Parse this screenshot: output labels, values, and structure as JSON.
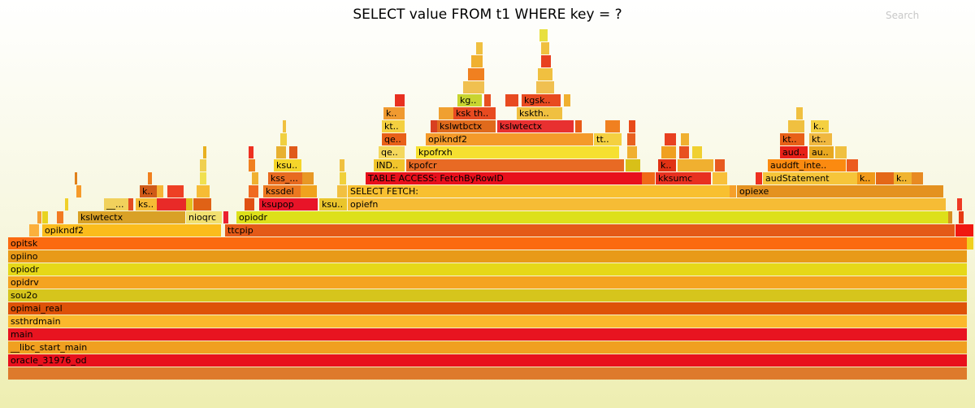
{
  "chart_data": {
    "type": "flamegraph",
    "title": "SELECT value FROM t1 WHERE key = ?",
    "search_label": "Search",
    "frames": [
      {
        "label": "",
        "depth": 0,
        "start": 0,
        "width": 1180,
        "color": "#de7a2c"
      },
      {
        "label": "oracle_31976_od",
        "depth": 1,
        "start": 0,
        "width": 1180,
        "color": "#e8101c"
      },
      {
        "label": "__libc_start_main",
        "depth": 2,
        "start": 0,
        "width": 1180,
        "color": "#f0a020"
      },
      {
        "label": "main",
        "depth": 3,
        "start": 0,
        "width": 1180,
        "color": "#e81420"
      },
      {
        "label": "ssthrdmain",
        "depth": 4,
        "start": 0,
        "width": 1180,
        "color": "#fbb82c"
      },
      {
        "label": "opimai_real",
        "depth": 5,
        "start": 0,
        "width": 1180,
        "color": "#de5208"
      },
      {
        "label": "sou2o",
        "depth": 6,
        "start": 0,
        "width": 1180,
        "color": "#d6c51c"
      },
      {
        "label": "opidrv",
        "depth": 7,
        "start": 0,
        "width": 1180,
        "color": "#f4a420"
      },
      {
        "label": "opiodr",
        "depth": 8,
        "start": 0,
        "width": 1180,
        "color": "#e6d818"
      },
      {
        "label": "opiino",
        "depth": 9,
        "start": 0,
        "width": 1180,
        "color": "#e89a18"
      },
      {
        "label": "opitsk",
        "depth": 10,
        "start": 0,
        "width": 1180,
        "color": "#fb6a10"
      },
      {
        "label": "",
        "depth": 10,
        "start": 1180,
        "width": 8,
        "color": "#f0d020"
      },
      {
        "label": "",
        "depth": 11,
        "start": 26,
        "width": 12,
        "color": "#fbb03c"
      },
      {
        "label": "opikndf2",
        "depth": 11,
        "start": 42,
        "width": 220,
        "color": "#fbbc1c"
      },
      {
        "label": "ttcpip",
        "depth": 11,
        "start": 267,
        "width": 898,
        "color": "#e45a18"
      },
      {
        "label": "",
        "depth": 11,
        "start": 1166,
        "width": 22,
        "color": "#f01810"
      },
      {
        "label": "",
        "depth": 12,
        "start": 36,
        "width": 5,
        "color": "#f5a033"
      },
      {
        "label": "",
        "depth": 12,
        "start": 42,
        "width": 7,
        "color": "#e8d320"
      },
      {
        "label": "",
        "depth": 12,
        "start": 60,
        "width": 8,
        "color": "#f27a22"
      },
      {
        "label": "kslwtectx",
        "depth": 12,
        "start": 86,
        "width": 132,
        "color": "#d9a126"
      },
      {
        "label": "nioqrc",
        "depth": 12,
        "start": 219,
        "width": 44,
        "color": "#f1e070"
      },
      {
        "label": "",
        "depth": 12,
        "start": 265,
        "width": 6,
        "color": "#eb2030"
      },
      {
        "label": "opiodr",
        "depth": 12,
        "start": 281,
        "width": 876,
        "color": "#dde01a"
      },
      {
        "label": "",
        "depth": 12,
        "start": 1157,
        "width": 5,
        "color": "#d89020"
      },
      {
        "label": "",
        "depth": 12,
        "start": 1170,
        "width": 6,
        "color": "#e63a12"
      },
      {
        "label": "",
        "depth": 13,
        "start": 70,
        "width": 4,
        "color": "#f0d02a"
      },
      {
        "label": "__...",
        "depth": 13,
        "start": 118,
        "width": 30,
        "color": "#f1d15c"
      },
      {
        "label": "",
        "depth": 13,
        "start": 148,
        "width": 6,
        "color": "#e44b22"
      },
      {
        "label": "ks..",
        "depth": 13,
        "start": 157,
        "width": 26,
        "color": "#f6bc35"
      },
      {
        "label": "",
        "depth": 13,
        "start": 183,
        "width": 36,
        "color": "#e82a28"
      },
      {
        "label": "",
        "depth": 13,
        "start": 219,
        "width": 8,
        "color": "#e3c01e"
      },
      {
        "label": "",
        "depth": 13,
        "start": 228,
        "width": 22,
        "color": "#e06216"
      },
      {
        "label": "",
        "depth": 13,
        "start": 291,
        "width": 12,
        "color": "#e05012"
      },
      {
        "label": "ksupop",
        "depth": 13,
        "start": 309,
        "width": 72,
        "color": "#e81428"
      },
      {
        "label": "ksu..",
        "depth": 13,
        "start": 383,
        "width": 34,
        "color": "#eac52c"
      },
      {
        "label": "opiefn",
        "depth": 13,
        "start": 418,
        "width": 736,
        "color": "#f6bc35"
      },
      {
        "label": "",
        "depth": 13,
        "start": 1168,
        "width": 6,
        "color": "#ee3a24"
      },
      {
        "label": "",
        "depth": 14,
        "start": 84,
        "width": 6,
        "color": "#f69a2a"
      },
      {
        "label": "k..",
        "depth": 14,
        "start": 162,
        "width": 21,
        "color": "#d05a18"
      },
      {
        "label": "",
        "depth": 14,
        "start": 183,
        "width": 8,
        "color": "#f6b435"
      },
      {
        "label": "",
        "depth": 14,
        "start": 196,
        "width": 20,
        "color": "#ee4025"
      },
      {
        "label": "",
        "depth": 14,
        "start": 232,
        "width": 16,
        "color": "#f6bc35"
      },
      {
        "label": "",
        "depth": 14,
        "start": 296,
        "width": 12,
        "color": "#f06a20"
      },
      {
        "label": "kssdel",
        "depth": 14,
        "start": 314,
        "width": 46,
        "color": "#ec7820"
      },
      {
        "label": "",
        "depth": 14,
        "start": 360,
        "width": 20,
        "color": "#f0a21e"
      },
      {
        "label": "",
        "depth": 14,
        "start": 405,
        "width": 12,
        "color": "#f2c040"
      },
      {
        "label": "SELECT FETCH:",
        "depth": 14,
        "start": 418,
        "width": 470,
        "color": "#f8c030"
      },
      {
        "label": "",
        "depth": 14,
        "start": 888,
        "width": 8,
        "color": "#f6a02a"
      },
      {
        "label": "opiexe",
        "depth": 14,
        "start": 897,
        "width": 254,
        "color": "#e49220"
      },
      {
        "label": "",
        "depth": 15,
        "start": 82,
        "width": 3,
        "color": "#e0801a"
      },
      {
        "label": "",
        "depth": 15,
        "start": 172,
        "width": 5,
        "color": "#f0801e"
      },
      {
        "label": "",
        "depth": 15,
        "start": 236,
        "width": 8,
        "color": "#f0e050"
      },
      {
        "label": "",
        "depth": 15,
        "start": 300,
        "width": 8,
        "color": "#f0b030"
      },
      {
        "label": "kss_...",
        "depth": 15,
        "start": 320,
        "width": 42,
        "color": "#e86a20"
      },
      {
        "label": "",
        "depth": 15,
        "start": 362,
        "width": 14,
        "color": "#e89825"
      },
      {
        "label": "",
        "depth": 15,
        "start": 408,
        "width": 8,
        "color": "#f0d03a"
      },
      {
        "label": "TABLE ACCESS: FetchByRowID",
        "depth": 15,
        "start": 440,
        "width": 340,
        "color": "#e8101c"
      },
      {
        "label": "",
        "depth": 15,
        "start": 780,
        "width": 16,
        "color": "#f06a18"
      },
      {
        "label": "kksumc",
        "depth": 15,
        "start": 797,
        "width": 68,
        "color": "#e83020"
      },
      {
        "label": "",
        "depth": 15,
        "start": 867,
        "width": 18,
        "color": "#f8c03a"
      },
      {
        "label": "",
        "depth": 15,
        "start": 920,
        "width": 8,
        "color": "#ee3020"
      },
      {
        "label": "audStatement",
        "depth": 15,
        "start": 929,
        "width": 116,
        "color": "#f6c53a"
      },
      {
        "label": "k..",
        "depth": 15,
        "start": 1045,
        "width": 22,
        "color": "#f09a1a"
      },
      {
        "label": "",
        "depth": 15,
        "start": 1068,
        "width": 22,
        "color": "#e46818"
      },
      {
        "label": "k..",
        "depth": 15,
        "start": 1090,
        "width": 22,
        "color": "#f0b430"
      },
      {
        "label": "",
        "depth": 15,
        "start": 1112,
        "width": 14,
        "color": "#e88a22"
      },
      {
        "label": "",
        "depth": 16,
        "start": 236,
        "width": 8,
        "color": "#f0d050"
      },
      {
        "label": "",
        "depth": 16,
        "start": 296,
        "width": 8,
        "color": "#f08020"
      },
      {
        "label": "ksu..",
        "depth": 16,
        "start": 327,
        "width": 34,
        "color": "#f5d52a"
      },
      {
        "label": "",
        "depth": 16,
        "start": 408,
        "width": 6,
        "color": "#f0c040"
      },
      {
        "label": "IND..",
        "depth": 16,
        "start": 450,
        "width": 38,
        "color": "#f1c52c"
      },
      {
        "label": "kpofcr",
        "depth": 16,
        "start": 490,
        "width": 268,
        "color": "#e86a24"
      },
      {
        "label": "",
        "depth": 16,
        "start": 760,
        "width": 18,
        "color": "#d8c018"
      },
      {
        "label": "k..",
        "depth": 16,
        "start": 800,
        "width": 22,
        "color": "#e03214"
      },
      {
        "label": "",
        "depth": 16,
        "start": 824,
        "width": 44,
        "color": "#f0b030"
      },
      {
        "label": "",
        "depth": 16,
        "start": 870,
        "width": 12,
        "color": "#e85a20"
      },
      {
        "label": "auddft_inte..",
        "depth": 16,
        "start": 935,
        "width": 96,
        "color": "#fb8a10"
      },
      {
        "label": "",
        "depth": 16,
        "start": 1032,
        "width": 14,
        "color": "#ec5c20"
      },
      {
        "label": "",
        "depth": 17,
        "start": 240,
        "width": 4,
        "color": "#e8b020"
      },
      {
        "label": "",
        "depth": 17,
        "start": 296,
        "width": 6,
        "color": "#ee3020"
      },
      {
        "label": "",
        "depth": 17,
        "start": 330,
        "width": 12,
        "color": "#e8b030"
      },
      {
        "label": "",
        "depth": 17,
        "start": 346,
        "width": 10,
        "color": "#e05a1a"
      },
      {
        "label": "qe..",
        "depth": 17,
        "start": 456,
        "width": 32,
        "color": "#f4d85c"
      },
      {
        "label": "kpofrxh",
        "depth": 17,
        "start": 502,
        "width": 250,
        "color": "#f6e030"
      },
      {
        "label": "",
        "depth": 17,
        "start": 762,
        "width": 12,
        "color": "#f0b030"
      },
      {
        "label": "",
        "depth": 17,
        "start": 804,
        "width": 18,
        "color": "#f0a020"
      },
      {
        "label": "",
        "depth": 17,
        "start": 826,
        "width": 12,
        "color": "#e85020"
      },
      {
        "label": "",
        "depth": 17,
        "start": 842,
        "width": 12,
        "color": "#f0d030"
      },
      {
        "label": "aud..",
        "depth": 17,
        "start": 950,
        "width": 34,
        "color": "#e82018"
      },
      {
        "label": "au..",
        "depth": 17,
        "start": 986,
        "width": 30,
        "color": "#e8a820"
      },
      {
        "label": "",
        "depth": 17,
        "start": 1018,
        "width": 14,
        "color": "#f0c040"
      },
      {
        "label": "",
        "depth": 18,
        "start": 335,
        "width": 8,
        "color": "#f0d040"
      },
      {
        "label": "qe..",
        "depth": 18,
        "start": 460,
        "width": 30,
        "color": "#e86018"
      },
      {
        "label": "opikndf2",
        "depth": 18,
        "start": 514,
        "width": 206,
        "color": "#f49a2a"
      },
      {
        "label": "tt..",
        "depth": 18,
        "start": 721,
        "width": 34,
        "color": "#f4d040"
      },
      {
        "label": "",
        "depth": 18,
        "start": 762,
        "width": 10,
        "color": "#e86020"
      },
      {
        "label": "",
        "depth": 18,
        "start": 808,
        "width": 14,
        "color": "#e84020"
      },
      {
        "label": "",
        "depth": 18,
        "start": 828,
        "width": 10,
        "color": "#f0b030"
      },
      {
        "label": "kt..",
        "depth": 18,
        "start": 950,
        "width": 30,
        "color": "#e86018"
      },
      {
        "label": "kt..",
        "depth": 18,
        "start": 986,
        "width": 28,
        "color": "#f0b840"
      },
      {
        "label": "",
        "depth": 19,
        "start": 338,
        "width": 4,
        "color": "#f0c040"
      },
      {
        "label": "kt..",
        "depth": 19,
        "start": 460,
        "width": 28,
        "color": "#f4d040"
      },
      {
        "label": "",
        "depth": 19,
        "start": 520,
        "width": 8,
        "color": "#d84020"
      },
      {
        "label": "kslwtbctx",
        "depth": 19,
        "start": 528,
        "width": 72,
        "color": "#e06a1c"
      },
      {
        "label": "kslwtectx",
        "depth": 19,
        "start": 602,
        "width": 94,
        "color": "#e83030"
      },
      {
        "label": "",
        "depth": 19,
        "start": 698,
        "width": 8,
        "color": "#e85a18"
      },
      {
        "label": "",
        "depth": 19,
        "start": 735,
        "width": 18,
        "color": "#f08020"
      },
      {
        "label": "",
        "depth": 19,
        "start": 764,
        "width": 8,
        "color": "#e84a1a"
      },
      {
        "label": "",
        "depth": 19,
        "start": 960,
        "width": 20,
        "color": "#f0c040"
      },
      {
        "label": "k..",
        "depth": 19,
        "start": 988,
        "width": 22,
        "color": "#f4d040"
      },
      {
        "label": "k..",
        "depth": 20,
        "start": 462,
        "width": 26,
        "color": "#f09a30"
      },
      {
        "label": "",
        "depth": 20,
        "start": 530,
        "width": 18,
        "color": "#f0a030"
      },
      {
        "label": "ksk th..",
        "depth": 20,
        "start": 548,
        "width": 52,
        "color": "#e84a20"
      },
      {
        "label": "kskth..",
        "depth": 20,
        "start": 626,
        "width": 56,
        "color": "#f0c040"
      },
      {
        "label": "",
        "depth": 20,
        "start": 970,
        "width": 8,
        "color": "#f0c040"
      },
      {
        "label": "",
        "depth": 21,
        "start": 476,
        "width": 12,
        "color": "#e83020"
      },
      {
        "label": "kg..",
        "depth": 21,
        "start": 553,
        "width": 30,
        "color": "#c8d430"
      },
      {
        "label": "",
        "depth": 21,
        "start": 586,
        "width": 8,
        "color": "#e85020"
      },
      {
        "label": "",
        "depth": 21,
        "start": 612,
        "width": 16,
        "color": "#e84a20"
      },
      {
        "label": "kgsk..",
        "depth": 21,
        "start": 632,
        "width": 48,
        "color": "#e84a20"
      },
      {
        "label": "",
        "depth": 21,
        "start": 684,
        "width": 8,
        "color": "#f0b030"
      },
      {
        "label": "",
        "depth": 22,
        "start": 560,
        "width": 26,
        "color": "#f0c050"
      },
      {
        "label": "",
        "depth": 22,
        "start": 650,
        "width": 22,
        "color": "#f0c050"
      },
      {
        "label": "",
        "depth": 23,
        "start": 566,
        "width": 20,
        "color": "#f08020"
      },
      {
        "label": "",
        "depth": 23,
        "start": 652,
        "width": 18,
        "color": "#f0c040"
      },
      {
        "label": "",
        "depth": 24,
        "start": 570,
        "width": 14,
        "color": "#f0b030"
      },
      {
        "label": "",
        "depth": 24,
        "start": 656,
        "width": 12,
        "color": "#e84020"
      },
      {
        "label": "",
        "depth": 25,
        "start": 576,
        "width": 8,
        "color": "#f0c040"
      },
      {
        "label": "",
        "depth": 25,
        "start": 656,
        "width": 10,
        "color": "#f0c040"
      },
      {
        "label": "",
        "depth": 26,
        "start": 654,
        "width": 10,
        "color": "#e8e040"
      }
    ]
  }
}
